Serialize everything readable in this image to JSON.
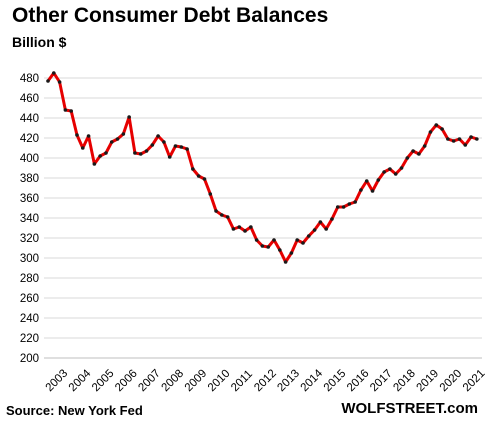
{
  "chart_data": {
    "type": "line",
    "title": "Other Consumer Debt Balances",
    "subtitle": "Billion $",
    "xlabel": "",
    "ylabel": "",
    "ylim": [
      200,
      480
    ],
    "yticks": [
      200,
      220,
      240,
      260,
      280,
      300,
      320,
      340,
      360,
      380,
      400,
      420,
      440,
      460,
      480
    ],
    "xlim": [
      2003.0,
      2021.5
    ],
    "xticks": [
      2003,
      2004,
      2005,
      2006,
      2007,
      2008,
      2009,
      2010,
      2011,
      2012,
      2013,
      2014,
      2015,
      2016,
      2017,
      2018,
      2019,
      2020,
      2021
    ],
    "grid": true,
    "legend": "none",
    "colors": {
      "line": "#e60000",
      "markers": "#1a1a1a",
      "grid": "#d9d9d9"
    },
    "series": [
      {
        "x": [
          2003.0,
          2003.25,
          2003.5,
          2003.75,
          2004.0,
          2004.25,
          2004.5,
          2004.75,
          2005.0,
          2005.25,
          2005.5,
          2005.75,
          2006.0,
          2006.25,
          2006.5,
          2006.75,
          2007.0,
          2007.25,
          2007.5,
          2007.75,
          2008.0,
          2008.25,
          2008.5,
          2008.75,
          2009.0,
          2009.25,
          2009.5,
          2009.75,
          2010.0,
          2010.25,
          2010.5,
          2010.75,
          2011.0,
          2011.25,
          2011.5,
          2011.75,
          2012.0,
          2012.25,
          2012.5,
          2012.75,
          2013.0,
          2013.25,
          2013.5,
          2013.75,
          2014.0,
          2014.25,
          2014.5,
          2014.75,
          2015.0,
          2015.25,
          2015.5,
          2015.75,
          2016.0,
          2016.25,
          2016.5,
          2016.75,
          2017.0,
          2017.25,
          2017.5,
          2017.75,
          2018.0,
          2018.25,
          2018.5,
          2018.75,
          2019.0,
          2019.25,
          2019.5,
          2019.75,
          2020.0,
          2020.25,
          2020.5,
          2020.75,
          2021.0,
          2021.25,
          2021.5
        ],
        "values": [
          477,
          485,
          476,
          448,
          447,
          423,
          410,
          422,
          394,
          402,
          405,
          416,
          419,
          424,
          441,
          405,
          404,
          407,
          413,
          422,
          416,
          401,
          412,
          411,
          409,
          389,
          382,
          379,
          364,
          347,
          343,
          341,
          329,
          331,
          327,
          331,
          318,
          312,
          311,
          318,
          308,
          296,
          305,
          318,
          315,
          322,
          328,
          336,
          329,
          339,
          351,
          351,
          354,
          356,
          368,
          377,
          367,
          378,
          386,
          389,
          384,
          390,
          400,
          407,
          404,
          412,
          426,
          433,
          429,
          419,
          417,
          419,
          413,
          421,
          419
        ]
      }
    ]
  },
  "source": "Source: New York Fed",
  "brand": "WOLFSTREET.com"
}
